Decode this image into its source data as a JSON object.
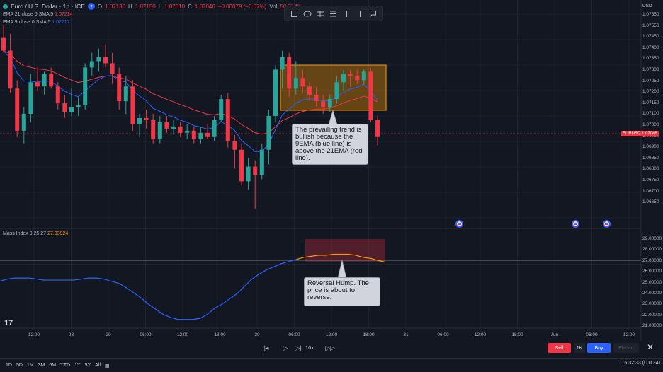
{
  "header": {
    "symbol": "Euro / U.S. Dollar · 1h · ICE",
    "o_key": "O",
    "o_val": "1.07130",
    "h_key": "H",
    "h_val": "1.07150",
    "l_key": "L",
    "l_val": "1.07010",
    "c_key": "C",
    "c_val": "1.07046",
    "change": "−0.00079 (−0.07%)",
    "vol_key": "Vol",
    "vol_val": "50.714K"
  },
  "ema21": {
    "label": "EMA 21 close 0 SMA 5",
    "value": "1.07214"
  },
  "ema9": {
    "label": "EMA 9 close 0 SMA 5",
    "value": "1.07217"
  },
  "price_axis": {
    "currency": "USD",
    "labels": [
      "1.07650",
      "1.07550",
      "1.07450",
      "1.07400",
      "1.07350",
      "1.07300",
      "1.07250",
      "1.07200",
      "1.07150",
      "1.07100",
      "1.07000",
      "1.06950",
      "1.06900",
      "1.06850",
      "1.06800",
      "1.06750",
      "1.06700",
      "1.06650"
    ],
    "current_symbol": "EURUSD",
    "current_price": "1.07046"
  },
  "mass_index": {
    "label": "Mass Index 9 25 27",
    "value": "27.03924",
    "axis_labels": [
      "29.00000",
      "28.00000",
      "27.00000",
      "26.00000",
      "25.00000",
      "24.00000",
      "23.00000",
      "22.00000",
      "21.00000"
    ]
  },
  "time_axis": [
    "12:00",
    "28",
    "29",
    "06:00",
    "12:00",
    "18:00",
    "30",
    "06:00",
    "12:00",
    "18:00",
    "31",
    "06:00",
    "12:00",
    "18:00",
    "Jun",
    "06:00",
    "12:00"
  ],
  "annotations": {
    "trend": "The prevailing trend is bullish because the 9EMA (blue line) is above the 21EMA (red line).",
    "reversal": "Reversal Hump. The price is about to reverse."
  },
  "playback": {
    "speed": "10x"
  },
  "trade_panel": {
    "sell": "Sell",
    "qty": "1K",
    "buy": "Buy",
    "flatten": "Flatten"
  },
  "ranges": [
    "1D",
    "5D",
    "1M",
    "3M",
    "6M",
    "YTD",
    "1Y",
    "5Y",
    "All"
  ],
  "clock": "15:32:33 (UTC-4)",
  "colors": {
    "bull": "#26a69a",
    "bear": "#f23645",
    "ema_fast": "#2962ff",
    "ema_slow": "#f23645",
    "mass_line": "#2962ff",
    "mass_line_recent": "#ff9800",
    "background": "#131722"
  },
  "chart_data": {
    "type": "candlestick",
    "interval": "1h",
    "candles": [
      {
        "o": 1.0752,
        "h": 1.0758,
        "l": 1.0745,
        "c": 1.0746
      },
      {
        "o": 1.0746,
        "h": 1.0754,
        "l": 1.0726,
        "c": 1.0728
      },
      {
        "o": 1.0728,
        "h": 1.0732,
        "l": 1.0705,
        "c": 1.0708
      },
      {
        "o": 1.0708,
        "h": 1.0719,
        "l": 1.0702,
        "c": 1.0716
      },
      {
        "o": 1.0716,
        "h": 1.0735,
        "l": 1.0712,
        "c": 1.0731
      },
      {
        "o": 1.0731,
        "h": 1.0738,
        "l": 1.0727,
        "c": 1.0729
      },
      {
        "o": 1.0729,
        "h": 1.0736,
        "l": 1.0725,
        "c": 1.0735
      },
      {
        "o": 1.0735,
        "h": 1.0738,
        "l": 1.0728,
        "c": 1.0729
      },
      {
        "o": 1.0729,
        "h": 1.0731,
        "l": 1.0718,
        "c": 1.0721
      },
      {
        "o": 1.0721,
        "h": 1.0725,
        "l": 1.0714,
        "c": 1.0717
      },
      {
        "o": 1.0717,
        "h": 1.0728,
        "l": 1.0715,
        "c": 1.0719
      },
      {
        "o": 1.0719,
        "h": 1.0724,
        "l": 1.0715,
        "c": 1.072
      },
      {
        "o": 1.072,
        "h": 1.074,
        "l": 1.0718,
        "c": 1.0738
      },
      {
        "o": 1.0738,
        "h": 1.0745,
        "l": 1.0734,
        "c": 1.0741
      },
      {
        "o": 1.0741,
        "h": 1.0747,
        "l": 1.0736,
        "c": 1.0743
      },
      {
        "o": 1.0743,
        "h": 1.0749,
        "l": 1.0738,
        "c": 1.074
      },
      {
        "o": 1.074,
        "h": 1.0745,
        "l": 1.073,
        "c": 1.0735
      },
      {
        "o": 1.0735,
        "h": 1.0738,
        "l": 1.0718,
        "c": 1.0722
      },
      {
        "o": 1.0722,
        "h": 1.0734,
        "l": 1.0716,
        "c": 1.0729
      },
      {
        "o": 1.0729,
        "h": 1.0732,
        "l": 1.0708,
        "c": 1.0711
      },
      {
        "o": 1.0711,
        "h": 1.0716,
        "l": 1.0705,
        "c": 1.0714
      },
      {
        "o": 1.0714,
        "h": 1.0718,
        "l": 1.0709,
        "c": 1.0713
      },
      {
        "o": 1.0713,
        "h": 1.0716,
        "l": 1.0702,
        "c": 1.0704
      },
      {
        "o": 1.0704,
        "h": 1.0715,
        "l": 1.0702,
        "c": 1.0712
      },
      {
        "o": 1.0712,
        "h": 1.0715,
        "l": 1.0707,
        "c": 1.0709
      },
      {
        "o": 1.0709,
        "h": 1.0713,
        "l": 1.0706,
        "c": 1.071
      },
      {
        "o": 1.071,
        "h": 1.0712,
        "l": 1.0705,
        "c": 1.0707
      },
      {
        "o": 1.0707,
        "h": 1.0711,
        "l": 1.0704,
        "c": 1.0708
      },
      {
        "o": 1.0708,
        "h": 1.071,
        "l": 1.0702,
        "c": 1.0704
      },
      {
        "o": 1.0704,
        "h": 1.071,
        "l": 1.0702,
        "c": 1.0707
      },
      {
        "o": 1.0707,
        "h": 1.0711,
        "l": 1.0704,
        "c": 1.0705
      },
      {
        "o": 1.0705,
        "h": 1.0715,
        "l": 1.0703,
        "c": 1.0713
      },
      {
        "o": 1.0713,
        "h": 1.0725,
        "l": 1.0712,
        "c": 1.0723
      },
      {
        "o": 1.0723,
        "h": 1.0726,
        "l": 1.07,
        "c": 1.0703
      },
      {
        "o": 1.0703,
        "h": 1.0706,
        "l": 1.069,
        "c": 1.0699
      },
      {
        "o": 1.0699,
        "h": 1.0702,
        "l": 1.0682,
        "c": 1.0684
      },
      {
        "o": 1.0684,
        "h": 1.0695,
        "l": 1.068,
        "c": 1.0691
      },
      {
        "o": 1.0691,
        "h": 1.0694,
        "l": 1.0671,
        "c": 1.0687
      },
      {
        "o": 1.0687,
        "h": 1.0702,
        "l": 1.0685,
        "c": 1.0699
      },
      {
        "o": 1.0699,
        "h": 1.0718,
        "l": 1.0692,
        "c": 1.0715
      },
      {
        "o": 1.0715,
        "h": 1.0739,
        "l": 1.0712,
        "c": 1.0737
      },
      {
        "o": 1.0737,
        "h": 1.0746,
        "l": 1.0728,
        "c": 1.0743
      },
      {
        "o": 1.0743,
        "h": 1.0745,
        "l": 1.0724,
        "c": 1.0728
      },
      {
        "o": 1.0728,
        "h": 1.0741,
        "l": 1.0725,
        "c": 1.0733
      },
      {
        "o": 1.0733,
        "h": 1.0737,
        "l": 1.0726,
        "c": 1.0729
      },
      {
        "o": 1.0729,
        "h": 1.0731,
        "l": 1.0722,
        "c": 1.0725
      },
      {
        "o": 1.0725,
        "h": 1.0729,
        "l": 1.0719,
        "c": 1.0722
      },
      {
        "o": 1.0722,
        "h": 1.0725,
        "l": 1.0716,
        "c": 1.0719
      },
      {
        "o": 1.0719,
        "h": 1.0725,
        "l": 1.0717,
        "c": 1.0723
      },
      {
        "o": 1.0723,
        "h": 1.0734,
        "l": 1.0721,
        "c": 1.0731
      },
      {
        "o": 1.0731,
        "h": 1.0737,
        "l": 1.0727,
        "c": 1.0735
      },
      {
        "o": 1.0735,
        "h": 1.0737,
        "l": 1.0729,
        "c": 1.0734
      },
      {
        "o": 1.0734,
        "h": 1.0737,
        "l": 1.073,
        "c": 1.0732
      },
      {
        "o": 1.0732,
        "h": 1.0737,
        "l": 1.073,
        "c": 1.0736
      },
      {
        "o": 1.0736,
        "h": 1.0738,
        "l": 1.0712,
        "c": 1.0713
      },
      {
        "o": 1.0713,
        "h": 1.0715,
        "l": 1.0701,
        "c": 1.0705
      }
    ],
    "ylim": [
      1.0662,
      1.077
    ],
    "mass_index": [
      25.2,
      25.4,
      25.5,
      25.5,
      25.5,
      25.4,
      25.3,
      25.3,
      25.3,
      25.3,
      25.3,
      25.4,
      25.5,
      25.5,
      25.4,
      25.2,
      25.0,
      24.6,
      24.1,
      23.6,
      23.0,
      22.5,
      22.0,
      21.7,
      21.5,
      21.5,
      21.5,
      21.6,
      22.0,
      22.6,
      23.0,
      23.5,
      24.0,
      24.7,
      25.4,
      25.9,
      26.3,
      26.6,
      26.9,
      27.1,
      27.3,
      27.5,
      27.6,
      27.7,
      27.7,
      27.8,
      27.8,
      27.8,
      27.7,
      27.5,
      27.4,
      27.2,
      27.04
    ],
    "mass_ylim": [
      20.8,
      29.4
    ],
    "mass_reference": 27.0
  }
}
